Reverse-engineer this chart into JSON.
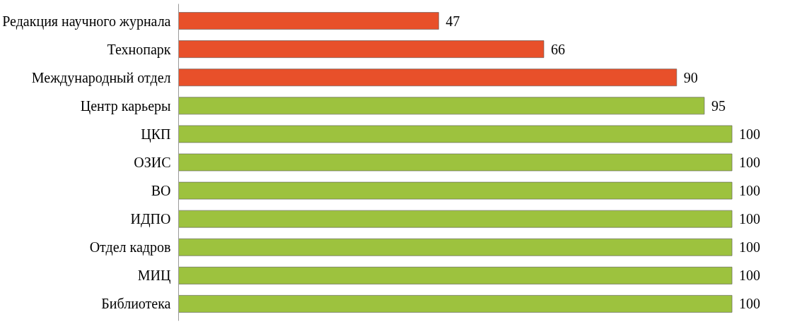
{
  "chart_data": {
    "type": "bar",
    "orientation": "horizontal",
    "categories": [
      "Редакция научного журнала",
      "Технопарк",
      "Международный отдел",
      "Центр карьеры",
      "ЦКП",
      "ОЗИС",
      "ВО",
      "ИДПО",
      "Отдел кадров",
      "МИЦ",
      "Библиотека"
    ],
    "values": [
      47,
      66,
      90,
      95,
      100,
      100,
      100,
      100,
      100,
      100,
      100
    ],
    "colors": [
      "#e8502a",
      "#e8502a",
      "#e8502a",
      "#9dc23e",
      "#9dc23e",
      "#9dc23e",
      "#9dc23e",
      "#9dc23e",
      "#9dc23e",
      "#9dc23e",
      "#9dc23e"
    ],
    "tick_labels": "y",
    "data_labels": true
  }
}
